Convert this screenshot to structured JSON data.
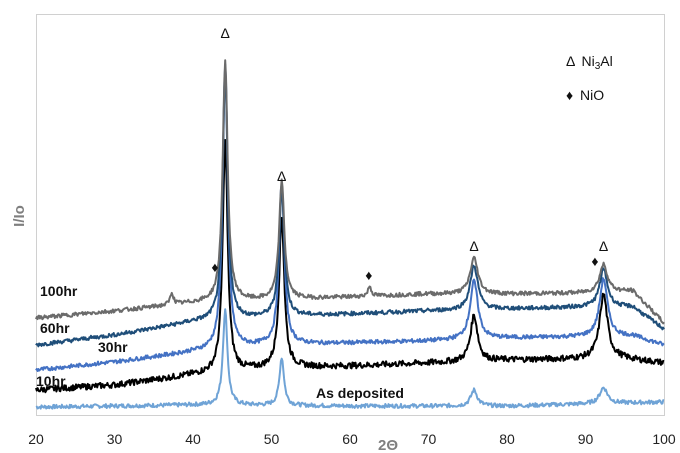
{
  "chart_data": {
    "type": "line",
    "title": "",
    "xlabel": "2Θ",
    "ylabel": "I/Io",
    "xlim": [
      20,
      100
    ],
    "xticks": [
      "20",
      "30",
      "40",
      "50",
      "60",
      "70",
      "80",
      "90",
      "100"
    ],
    "yticks": [],
    "grid": false,
    "legend": {
      "placement": "top-right",
      "entries": [
        {
          "symbol": "Δ",
          "label_pre": "Ni",
          "sub": "3",
          "label_post": "Al"
        },
        {
          "symbol": "♦",
          "label": "NiO"
        }
      ]
    },
    "peak_markers": [
      {
        "symbol": "Δ",
        "x": 44.1,
        "phase": "Ni3Al"
      },
      {
        "symbol": "Δ",
        "x": 51.3,
        "phase": "Ni3Al"
      },
      {
        "symbol": "Δ",
        "x": 75.8,
        "phase": "Ni3Al"
      },
      {
        "symbol": "Δ",
        "x": 92.3,
        "phase": "Ni3Al"
      },
      {
        "symbol": "♦",
        "x": 42.8,
        "phase": "NiO"
      },
      {
        "symbol": "♦",
        "x": 62.4,
        "phase": "NiO"
      },
      {
        "symbol": "♦",
        "x": 91.2,
        "phase": "NiO"
      }
    ],
    "series": [
      {
        "name": "As deposited",
        "color": "#6fa3d6",
        "baseline": [
          [
            20,
            8
          ],
          [
            40,
            10
          ],
          [
            60,
            9
          ],
          [
            80,
            9
          ],
          [
            100,
            13
          ]
        ],
        "peaks": [
          [
            44.1,
            95,
            0.35
          ],
          [
            51.3,
            48,
            0.35
          ],
          [
            75.8,
            16,
            0.5
          ],
          [
            92.3,
            16,
            0.6
          ]
        ]
      },
      {
        "name": "10hr",
        "color": "#000000",
        "baseline": [
          [
            20,
            25
          ],
          [
            30,
            30
          ],
          [
            40,
            40
          ],
          [
            50,
            47
          ],
          [
            60,
            49
          ],
          [
            70,
            52
          ],
          [
            80,
            55
          ],
          [
            88,
            56
          ],
          [
            94,
            57
          ],
          [
            100,
            52
          ]
        ],
        "peaks": [
          [
            44.1,
            230,
            0.38
          ],
          [
            51.3,
            150,
            0.4
          ],
          [
            75.8,
            46,
            0.55
          ],
          [
            92.3,
            64,
            0.6
          ]
        ]
      },
      {
        "name": "30hr",
        "color": "#4472c4",
        "baseline": [
          [
            20,
            45
          ],
          [
            30,
            53
          ],
          [
            40,
            63
          ],
          [
            50,
            70
          ],
          [
            60,
            72
          ],
          [
            70,
            74
          ],
          [
            80,
            77
          ],
          [
            88,
            78
          ],
          [
            96,
            79
          ],
          [
            100,
            70
          ]
        ],
        "peaks": [
          [
            44.1,
            285,
            0.38
          ],
          [
            51.3,
            162,
            0.4
          ],
          [
            75.8,
            58,
            0.6
          ],
          [
            92.3,
            58,
            0.6
          ]
        ]
      },
      {
        "name": "60hr",
        "color": "#1f4e79",
        "baseline": [
          [
            20,
            70
          ],
          [
            30,
            80
          ],
          [
            40,
            93
          ],
          [
            50,
            98
          ],
          [
            60,
            101
          ],
          [
            70,
            104
          ],
          [
            80,
            106
          ],
          [
            90,
            108
          ],
          [
            96,
            108
          ],
          [
            100,
            86
          ]
        ],
        "peaks": [
          [
            44.1,
            248,
            0.38
          ],
          [
            51.3,
            128,
            0.4
          ],
          [
            75.8,
            44,
            0.6
          ],
          [
            92.3,
            38,
            0.6
          ]
        ]
      },
      {
        "name": "100hr",
        "color": "#6b6b6b",
        "baseline": [
          [
            20,
            97
          ],
          [
            30,
            104
          ],
          [
            40,
            112
          ],
          [
            50,
            115
          ],
          [
            60,
            118
          ],
          [
            70,
            121
          ],
          [
            80,
            121
          ],
          [
            90,
            122
          ],
          [
            96,
            124
          ],
          [
            100,
            92
          ]
        ],
        "peaks": [
          [
            44.1,
            240,
            0.38
          ],
          [
            51.3,
            118,
            0.4
          ],
          [
            75.8,
            36,
            0.6
          ],
          [
            92.3,
            28,
            0.6
          ],
          [
            37.3,
            12,
            0.25
          ],
          [
            62.5,
            10,
            0.25
          ]
        ]
      }
    ]
  }
}
